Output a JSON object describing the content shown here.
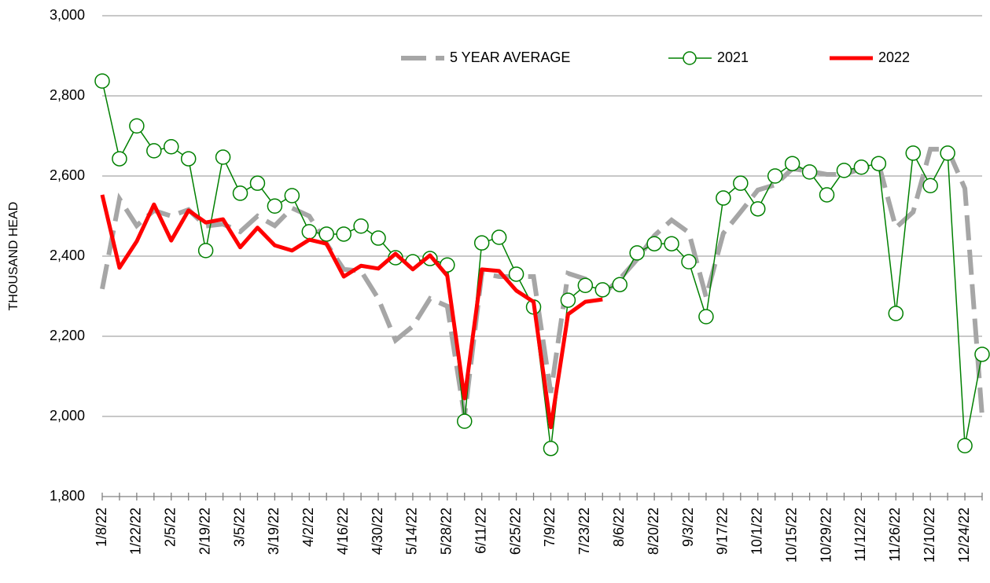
{
  "chart_data": {
    "type": "line",
    "y_label": "THOUSAND HEAD",
    "categories": [
      "1/8/22",
      null,
      "1/22/22",
      null,
      "2/5/22",
      null,
      "2/19/22",
      null,
      "3/5/22",
      null,
      "3/19/22",
      null,
      "4/2/22",
      null,
      "4/16/22",
      null,
      "4/30/22",
      null,
      "5/14/22",
      null,
      "5/28/22",
      null,
      "6/11/22",
      null,
      "6/25/22",
      null,
      "7/9/22",
      null,
      "7/23/22",
      null,
      "8/6/22",
      null,
      "8/20/22",
      null,
      "9/3/22",
      null,
      "9/17/22",
      null,
      "10/1/22",
      null,
      "10/15/22",
      null,
      "10/29/22",
      null,
      "11/12/22",
      null,
      "11/26/22",
      null,
      "12/10/22",
      null,
      "12/24/22",
      null
    ],
    "series": [
      {
        "name": "5 YEAR AVERAGE",
        "color": "#a6a6a6",
        "style": "dashed",
        "values": [
          2318,
          2543,
          2476,
          2514,
          2500,
          2516,
          2475,
          2480,
          2461,
          2500,
          2476,
          2520,
          2500,
          2431,
          2367,
          2363,
          2294,
          2190,
          2225,
          2294,
          2275,
          2000,
          2357,
          2349,
          2349,
          2349,
          2059,
          2357,
          2343,
          2304,
          2343,
          2392,
          2451,
          2490,
          2459,
          2298,
          2457,
          2510,
          2565,
          2578,
          2618,
          2612,
          2604,
          2604,
          2618,
          2631,
          2471,
          2510,
          2667,
          2667,
          2569,
          2000
        ]
      },
      {
        "name": "2021",
        "color": "#008000",
        "style": "marker",
        "values": [
          2837,
          2643,
          2725,
          2663,
          2673,
          2643,
          2414,
          2647,
          2557,
          2582,
          2525,
          2551,
          2461,
          2455,
          2455,
          2475,
          2445,
          2396,
          2386,
          2394,
          2378,
          1988,
          2433,
          2447,
          2355,
          2273,
          1920,
          2290,
          2327,
          2316,
          2329,
          2408,
          2431,
          2431,
          2386,
          2249,
          2545,
          2582,
          2518,
          2600,
          2631,
          2610,
          2553,
          2614,
          2622,
          2631,
          2257,
          2657,
          2576,
          2657,
          1927,
          2155
        ]
      },
      {
        "name": "2022",
        "color": "#ff0000",
        "style": "thick",
        "values": [
          2553,
          2371,
          2437,
          2529,
          2439,
          2514,
          2484,
          2492,
          2422,
          2471,
          2427,
          2414,
          2441,
          2431,
          2349,
          2376,
          2369,
          2406,
          2367,
          2402,
          2351,
          2045,
          2367,
          2363,
          2314,
          2286,
          1973,
          2255,
          2286,
          2292,
          null,
          null,
          null,
          null,
          null,
          null,
          null,
          null,
          null,
          null,
          null,
          null,
          null,
          null,
          null,
          null,
          null,
          null,
          null,
          null,
          null,
          null
        ]
      }
    ],
    "ylim": [
      1800,
      3000
    ],
    "yticks": [
      {
        "value": 1800,
        "label": "1,800"
      },
      {
        "value": 2000,
        "label": "2,000"
      },
      {
        "value": 2200,
        "label": "2,200"
      },
      {
        "value": 2400,
        "label": "2,400"
      },
      {
        "value": 2600,
        "label": "2,600"
      },
      {
        "value": 2800,
        "label": "2,800"
      },
      {
        "value": 3000,
        "label": "3,000"
      }
    ],
    "grid": true,
    "legend": "top"
  }
}
